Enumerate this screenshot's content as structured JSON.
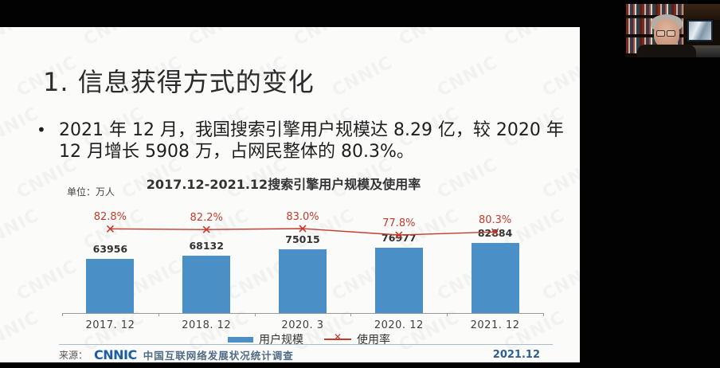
{
  "slide": {
    "title": "1. 信息获得方式的变化",
    "bullet": {
      "marker": "•",
      "line1": "2021 年 12 月，我国搜索引擎用户规模达 8.29 亿，较 2020 年",
      "line2": "12 月增长 5908 万，占网民整体的 80.3%。"
    },
    "watermark_text": "CNNIC",
    "footer": {
      "source_prefix": "来源：",
      "logo_text": "CNNIC",
      "source_name": "中国互联网络发展状况统计调查",
      "date_label": "2021.12"
    },
    "colors": {
      "bar_blue": "#4a8fc6",
      "line_red": "#c43b2e",
      "logo_blue": "#1b5ea6",
      "date_blue": "#2e5e91"
    }
  },
  "chart_data": {
    "type": "bar",
    "title": "2017.12-2021.12搜索引擎用户规模及使用率",
    "unit_label": "单位：万人",
    "categories": [
      "2017. 12",
      "2018. 12",
      "2020. 3",
      "2020. 12",
      "2021. 12"
    ],
    "series": [
      {
        "name": "用户规模",
        "type": "bar",
        "color": "#4a8fc6",
        "values": [
          63956,
          68132,
          75015,
          76977,
          82884
        ],
        "value_labels": [
          "63956",
          "68132",
          "75015",
          "76977",
          "82884"
        ]
      },
      {
        "name": "使用率",
        "type": "line",
        "marker": "x",
        "color": "#c43b2e",
        "values": [
          82.8,
          82.2,
          83.0,
          77.8,
          80.3
        ],
        "value_labels": [
          "82.8%",
          "82.2%",
          "83.0%",
          "77.8%",
          "80.3%"
        ]
      }
    ],
    "xlabel": "",
    "ylabel": "万人",
    "ylim": [
      0,
      90000
    ],
    "y2lim": [
      70,
      90
    ],
    "grid": false,
    "legend_position": "bottom"
  },
  "webcam": {
    "description": "presenter video thumbnail"
  }
}
